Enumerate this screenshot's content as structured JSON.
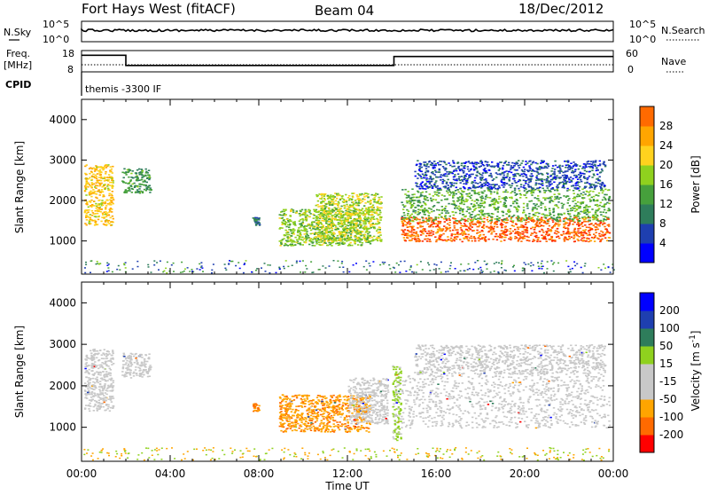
{
  "header": {
    "station": "Fort Hays West (fitACF)",
    "beam": "Beam 04",
    "date": "18/Dec/2012"
  },
  "side_labels": {
    "nsky": "N.Sky",
    "nsearch": "N.Search",
    "freq": "Freq.",
    "freq_unit": "[MHz]",
    "nave": "Nave",
    "cpid": "CPID",
    "cpid_value": "themis -3300 IF"
  },
  "noise_panel": {
    "left_ticks": [
      "10^5",
      "10^0"
    ],
    "right_ticks": [
      "10^5",
      "10^0"
    ]
  },
  "freq_panel": {
    "left_ticks": [
      "18",
      "8"
    ],
    "right_ticks": [
      "60",
      "0"
    ],
    "freq_steps": [
      {
        "t": 0.0,
        "mhz": 15.8
      },
      {
        "t": 2.0,
        "mhz": 11.0
      },
      {
        "t": 14.1,
        "mhz": 15.2
      },
      {
        "t": 24.0,
        "mhz": 15.2
      }
    ],
    "nave_level": 20
  },
  "colors": {
    "power": [
      "#0000ff",
      "#1e3fb0",
      "#2e7d5b",
      "#46a03c",
      "#8fd11e",
      "#ffd21e",
      "#ffa500",
      "#ff6a00",
      "#ff2a00"
    ],
    "velocity": [
      "#ff0000",
      "#ff6a00",
      "#ffa500",
      "#c8c8c8",
      "#c8c8c8",
      "#8fd11e",
      "#2e7d5b",
      "#1e3fb0",
      "#0000ff"
    ],
    "velocity_panel_ground": "#c8c8c8"
  },
  "chart_data": [
    {
      "type": "heatmap",
      "parameter": "power",
      "xlabel": "",
      "ylabel": "Slant Range [km]",
      "xlim": [
        0,
        24
      ],
      "ylim": [
        180,
        4500
      ],
      "yticks": [
        1000,
        2000,
        3000,
        4000
      ],
      "colorbar_label": "Power [dB]",
      "colorbar_ticks": [
        "4",
        "8",
        "12",
        "16",
        "20",
        "24",
        "28"
      ],
      "colorbar_range": [
        0,
        30
      ],
      "echo_regions": [
        {
          "t0": 0.1,
          "t1": 1.4,
          "r0": 1400,
          "r1": 2900,
          "level": 20
        },
        {
          "t0": 1.8,
          "t1": 3.1,
          "r0": 2200,
          "r1": 2800,
          "level": 10
        },
        {
          "t0": 7.7,
          "t1": 8.0,
          "r0": 1400,
          "r1": 1600,
          "level": 6
        },
        {
          "t0": 8.9,
          "t1": 13.0,
          "r0": 900,
          "r1": 1800,
          "level": 14
        },
        {
          "t0": 10.5,
          "t1": 13.5,
          "r0": 1000,
          "r1": 2200,
          "level": 16
        },
        {
          "t0": 14.4,
          "t1": 23.8,
          "r0": 1000,
          "r1": 1600,
          "level": 27
        },
        {
          "t0": 14.4,
          "t1": 23.8,
          "r0": 1500,
          "r1": 2300,
          "level": 12
        },
        {
          "t0": 15.0,
          "t1": 23.6,
          "r0": 2300,
          "r1": 3000,
          "level": 4
        }
      ]
    },
    {
      "type": "heatmap",
      "parameter": "velocity",
      "xlabel": "Time UT",
      "ylabel": "Slant Range [km]",
      "xlim": [
        0,
        24
      ],
      "ylim": [
        180,
        4500
      ],
      "yticks": [
        1000,
        2000,
        3000,
        4000
      ],
      "xticks": [
        "00:00",
        "04:00",
        "08:00",
        "12:00",
        "16:00",
        "20:00",
        "00:00"
      ],
      "colorbar_label": "Velocity",
      "colorbar_unit": "[m s",
      "colorbar_unit_exp": "-1",
      "colorbar_unit_end": "]",
      "colorbar_ticks": [
        "-200",
        "-100",
        "-50",
        "-15",
        "15",
        "50",
        "100",
        "200"
      ],
      "echo_regions": [
        {
          "t0": 0.1,
          "t1": 1.4,
          "r0": 1400,
          "r1": 2900,
          "velocity": 0
        },
        {
          "t0": 1.8,
          "t1": 3.1,
          "r0": 2200,
          "r1": 2800,
          "velocity": 0
        },
        {
          "t0": 7.7,
          "t1": 8.0,
          "r0": 1400,
          "r1": 1600,
          "velocity": -80
        },
        {
          "t0": 8.9,
          "t1": 13.0,
          "r0": 900,
          "r1": 1800,
          "velocity": -60
        },
        {
          "t0": 12.0,
          "t1": 13.8,
          "r0": 1100,
          "r1": 2200,
          "velocity": 0
        },
        {
          "t0": 14.0,
          "t1": 14.4,
          "r0": 700,
          "r1": 2500,
          "velocity": 40
        },
        {
          "t0": 14.4,
          "t1": 23.8,
          "r0": 1000,
          "r1": 2300,
          "velocity": 0
        },
        {
          "t0": 15.0,
          "t1": 23.6,
          "r0": 2300,
          "r1": 3000,
          "velocity": 0
        }
      ]
    }
  ]
}
